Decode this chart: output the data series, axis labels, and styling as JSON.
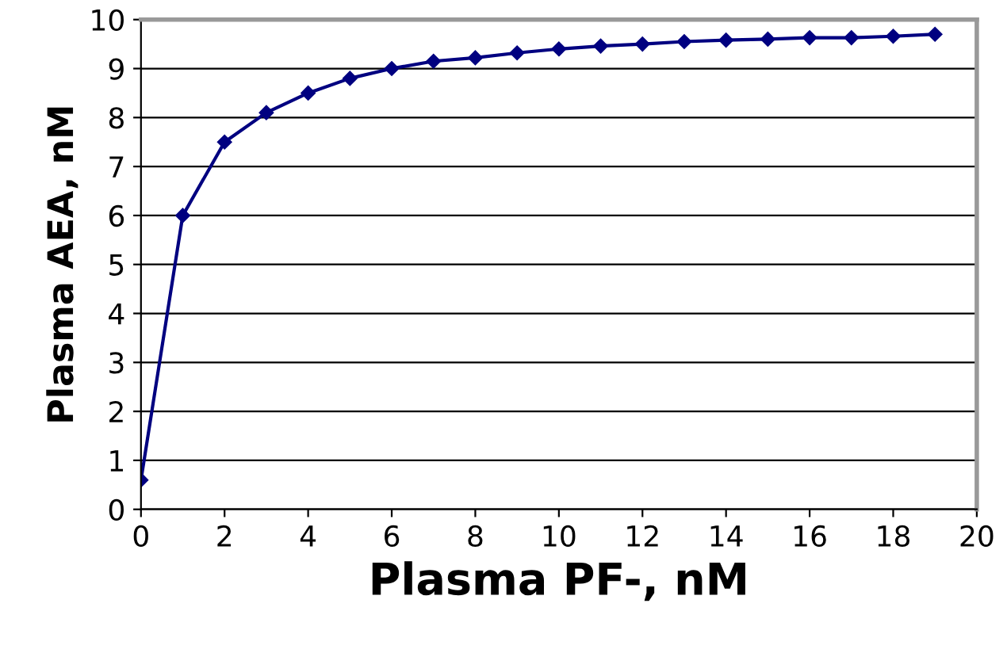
{
  "chart_data": {
    "type": "line",
    "xlabel": "Plasma PF-, nM",
    "ylabel": "Plasma AEA, nM",
    "x": [
      0,
      1,
      2,
      3,
      4,
      5,
      6,
      7,
      8,
      9,
      10,
      11,
      12,
      13,
      14,
      15,
      16,
      17,
      18,
      19
    ],
    "series": [
      {
        "color": "#000080",
        "values": [
          0.6,
          6.0,
          7.5,
          8.1,
          8.5,
          8.8,
          9.0,
          9.15,
          9.22,
          9.32,
          9.4,
          9.46,
          9.5,
          9.55,
          9.58,
          9.6,
          9.63,
          9.63,
          9.66,
          9.7
        ]
      }
    ],
    "xlim": [
      0,
      20
    ],
    "ylim": [
      0,
      10
    ],
    "xticks": [
      0,
      2,
      4,
      6,
      8,
      10,
      12,
      14,
      16,
      18,
      20
    ],
    "yticks": [
      0,
      1,
      2,
      3,
      4,
      5,
      6,
      7,
      8,
      9,
      10
    ],
    "grid": "y",
    "marker": "diamond"
  }
}
